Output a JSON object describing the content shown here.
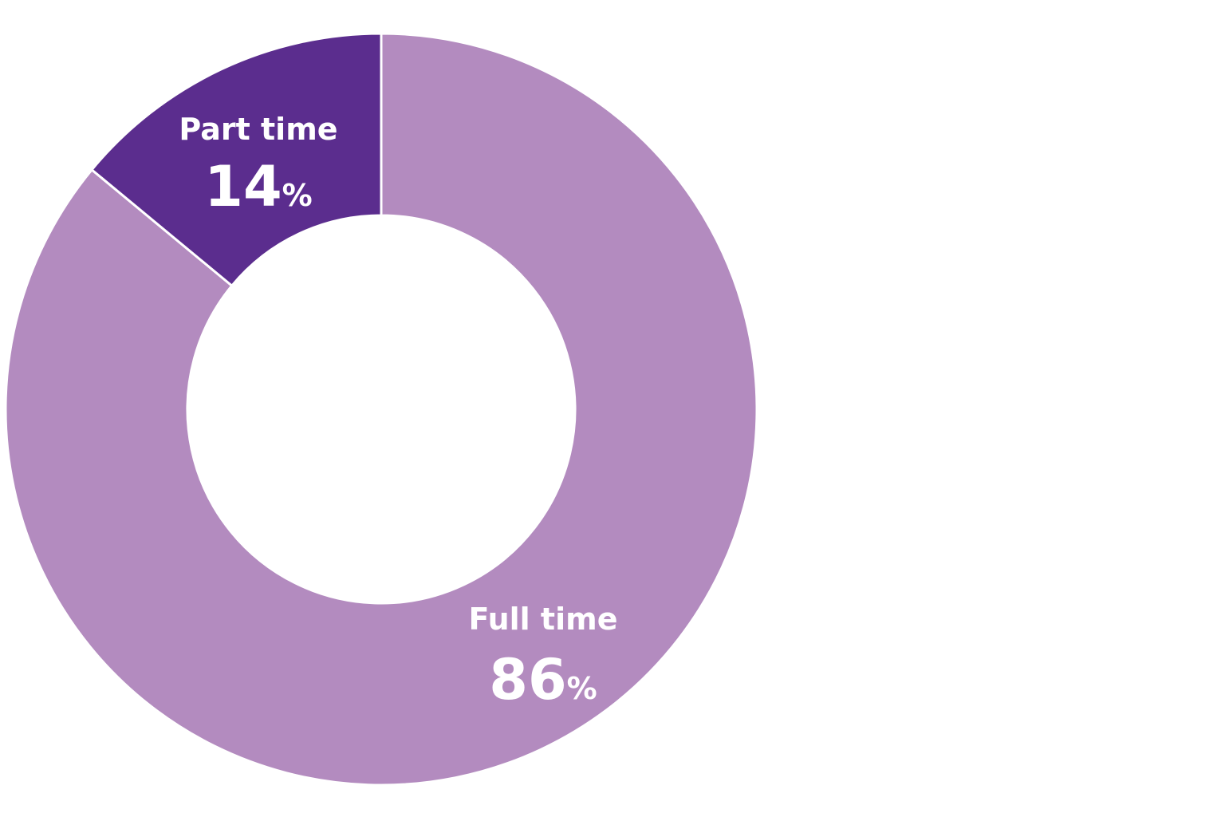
{
  "chart_data": {
    "type": "pie",
    "variant": "donut",
    "title": "",
    "unit": "%",
    "categories": [
      "Full time",
      "Part time"
    ],
    "values": [
      86,
      14
    ],
    "colors": [
      "#b38bbf",
      "#5b2d8e"
    ],
    "legend": "none",
    "labels_inside_slices": true
  }
}
